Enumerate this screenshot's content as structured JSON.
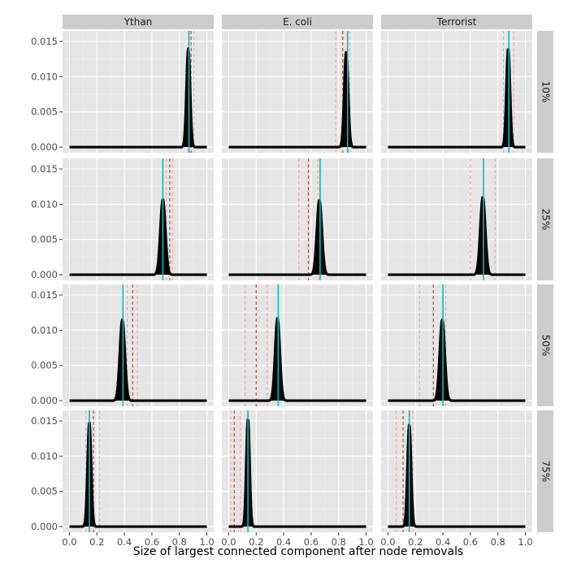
{
  "chart_data": {
    "type": "area",
    "title": "",
    "xlabel": "Size of largest connected component after node removals",
    "ylabel": "",
    "xlim": [
      -0.05,
      1.05
    ],
    "ylim": [
      -0.0008,
      0.0165
    ],
    "x_ticks": [
      0.0,
      0.2,
      0.4,
      0.6,
      0.8,
      1.0
    ],
    "x_tick_labels": [
      "0.0",
      "0.2",
      "0.4",
      "0.6",
      "0.8",
      "1.0"
    ],
    "y_ticks": [
      0.0,
      0.005,
      0.01,
      0.015
    ],
    "y_tick_labels": [
      "0.000",
      "0.005",
      "0.010",
      "0.015"
    ],
    "columns": [
      "Ythan",
      "E. coli",
      "Terrorist"
    ],
    "rows": [
      "10%",
      "25%",
      "50%",
      "75%"
    ],
    "legend": "none",
    "grid": true,
    "colors": {
      "panel_bg": "#e5e5e5",
      "grid": "#ffffff",
      "strip_bg": "#cccccc",
      "density": "#000000",
      "mean_line": "#00bfc4",
      "dashed_dark": "#c0392b",
      "dashed_light": "#f4a09a"
    },
    "panels": [
      {
        "row": "10%",
        "col": "Ythan",
        "peak_x": 0.865,
        "peak_y": 0.014,
        "width": 0.013,
        "mean_line": 0.87,
        "dashed_dark": [
          0.885
        ],
        "dashed_light": [
          0.865,
          0.905
        ]
      },
      {
        "row": "10%",
        "col": "E. coli",
        "peak_x": 0.855,
        "peak_y": 0.0135,
        "width": 0.014,
        "mean_line": 0.865,
        "dashed_dark": [
          0.83
        ],
        "dashed_light": [
          0.78,
          0.88
        ]
      },
      {
        "row": "10%",
        "col": "Terrorist",
        "peak_x": 0.875,
        "peak_y": 0.014,
        "width": 0.013,
        "mean_line": 0.88,
        "dashed_dark": [
          0.88
        ],
        "dashed_light": [
          0.84,
          0.915
        ]
      },
      {
        "row": "25%",
        "col": "Ythan",
        "peak_x": 0.68,
        "peak_y": 0.0107,
        "width": 0.018,
        "mean_line": 0.68,
        "dashed_dark": [
          0.73
        ],
        "dashed_light": [
          0.705,
          0.75
        ]
      },
      {
        "row": "25%",
        "col": "E. coli",
        "peak_x": 0.66,
        "peak_y": 0.0106,
        "width": 0.018,
        "mean_line": 0.665,
        "dashed_dark": [
          0.58
        ],
        "dashed_light": [
          0.51,
          0.65
        ]
      },
      {
        "row": "25%",
        "col": "Terrorist",
        "peak_x": 0.69,
        "peak_y": 0.011,
        "width": 0.018,
        "mean_line": 0.695,
        "dashed_dark": [
          0.695
        ],
        "dashed_light": [
          0.6,
          0.78
        ]
      },
      {
        "row": "50%",
        "col": "Ythan",
        "peak_x": 0.385,
        "peak_y": 0.0115,
        "width": 0.018,
        "mean_line": 0.39,
        "dashed_dark": [
          0.46
        ],
        "dashed_light": [
          0.42,
          0.495
        ]
      },
      {
        "row": "50%",
        "col": "E. coli",
        "peak_x": 0.355,
        "peak_y": 0.0117,
        "width": 0.017,
        "mean_line": 0.36,
        "dashed_dark": [
          0.2
        ],
        "dashed_light": [
          0.12,
          0.28
        ]
      },
      {
        "row": "50%",
        "col": "Terrorist",
        "peak_x": 0.395,
        "peak_y": 0.0115,
        "width": 0.018,
        "mean_line": 0.4,
        "dashed_dark": [
          0.33
        ],
        "dashed_light": [
          0.23,
          0.42
        ]
      },
      {
        "row": "75%",
        "col": "Ythan",
        "peak_x": 0.145,
        "peak_y": 0.0148,
        "width": 0.013,
        "mean_line": 0.145,
        "dashed_dark": [
          0.175
        ],
        "dashed_light": [
          0.12,
          0.22
        ]
      },
      {
        "row": "75%",
        "col": "E. coli",
        "peak_x": 0.14,
        "peak_y": 0.0153,
        "width": 0.012,
        "mean_line": 0.14,
        "dashed_dark": [
          0.04
        ],
        "dashed_light": [
          0.015,
          0.085
        ]
      },
      {
        "row": "75%",
        "col": "Terrorist",
        "peak_x": 0.155,
        "peak_y": 0.0145,
        "width": 0.013,
        "mean_line": 0.155,
        "dashed_dark": [
          0.11
        ],
        "dashed_light": [
          0.06,
          0.18
        ]
      }
    ]
  }
}
